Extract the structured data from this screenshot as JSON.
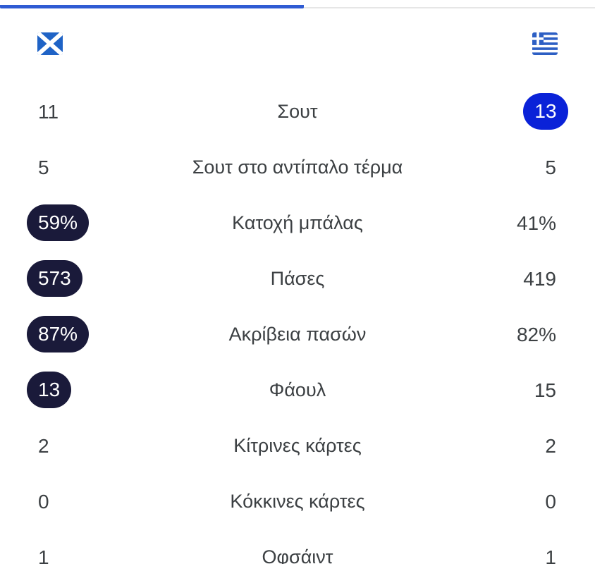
{
  "teams": {
    "home": {
      "flag_icon": "scotland-flag-icon"
    },
    "away": {
      "flag_icon": "greece-flag-icon"
    }
  },
  "colors": {
    "tab_indicator": "#2f5bd3",
    "home_highlight": "#1a1a3a",
    "away_highlight": "#0a22d8"
  },
  "stats": [
    {
      "label": "Σουτ",
      "home": "11",
      "away": "13",
      "leader": "away"
    },
    {
      "label": "Σουτ στο αντίπαλο τέρμα",
      "home": "5",
      "away": "5",
      "leader": "none"
    },
    {
      "label": "Κατοχή μπάλας",
      "home": "59%",
      "away": "41%",
      "leader": "home"
    },
    {
      "label": "Πάσες",
      "home": "573",
      "away": "419",
      "leader": "home"
    },
    {
      "label": "Ακρίβεια πασών",
      "home": "87%",
      "away": "82%",
      "leader": "home"
    },
    {
      "label": "Φάουλ",
      "home": "13",
      "away": "15",
      "leader": "home"
    },
    {
      "label": "Κίτρινες κάρτες",
      "home": "2",
      "away": "2",
      "leader": "none"
    },
    {
      "label": "Κόκκινες κάρτες",
      "home": "0",
      "away": "0",
      "leader": "none"
    },
    {
      "label": "Οφσάιντ",
      "home": "1",
      "away": "1",
      "leader": "none"
    }
  ]
}
